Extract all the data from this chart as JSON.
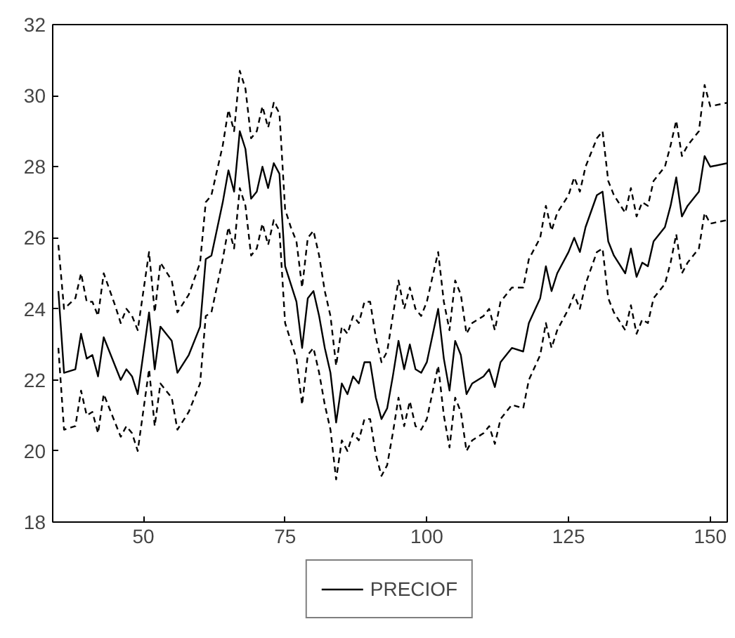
{
  "chart_data": {
    "type": "line",
    "x": [
      35,
      36,
      38,
      39,
      40,
      41,
      42,
      43,
      45,
      46,
      47,
      48,
      49,
      51,
      52,
      53,
      55,
      56,
      58,
      60,
      61,
      62,
      64,
      65,
      66,
      67,
      68,
      69,
      70,
      71,
      72,
      73,
      74,
      75,
      76,
      77,
      78,
      79,
      80,
      81,
      82,
      83,
      84,
      85,
      86,
      87,
      88,
      89,
      90,
      91,
      92,
      93,
      94,
      95,
      96,
      97,
      98,
      99,
      100,
      102,
      103,
      104,
      105,
      106,
      107,
      108,
      110,
      111,
      112,
      113,
      115,
      117,
      118,
      120,
      121,
      122,
      123,
      125,
      126,
      127,
      128,
      130,
      131,
      132,
      133,
      135,
      136,
      137,
      138,
      139,
      140,
      142,
      143,
      144,
      145,
      146,
      148,
      149,
      150,
      153
    ],
    "series": [
      {
        "name": "PRECIOF",
        "color": "#000000",
        "line_style": "solid",
        "values": [
          24.5,
          22.2,
          22.3,
          23.3,
          22.6,
          22.7,
          22.1,
          23.2,
          22.4,
          22.0,
          22.3,
          22.1,
          21.6,
          23.9,
          22.3,
          23.5,
          23.1,
          22.2,
          22.7,
          23.5,
          25.4,
          25.5,
          27.0,
          27.9,
          27.3,
          29.0,
          28.5,
          27.1,
          27.3,
          28.0,
          27.4,
          28.1,
          27.8,
          25.2,
          24.7,
          24.2,
          22.9,
          24.3,
          24.5,
          23.8,
          22.9,
          22.2,
          20.8,
          21.9,
          21.6,
          22.1,
          21.9,
          22.5,
          22.5,
          21.5,
          20.9,
          21.2,
          22.1,
          23.1,
          22.3,
          23.0,
          22.3,
          22.2,
          22.5,
          24.0,
          22.6,
          21.7,
          23.1,
          22.7,
          21.6,
          21.9,
          22.1,
          22.3,
          21.8,
          22.5,
          22.9,
          22.8,
          23.6,
          24.3,
          25.2,
          24.5,
          25.0,
          25.6,
          26.0,
          25.6,
          26.3,
          27.2,
          27.3,
          25.9,
          25.5,
          25.0,
          25.7,
          24.9,
          25.3,
          25.2,
          25.9,
          26.3,
          26.9,
          27.7,
          26.6,
          26.9,
          27.3,
          28.3,
          28.0,
          28.1
        ]
      },
      {
        "color": "#000000",
        "line_style": "dashed",
        "values": [
          25.8,
          24.0,
          24.3,
          25.0,
          24.2,
          24.2,
          23.8,
          25.0,
          24.1,
          23.6,
          24.0,
          23.8,
          23.4,
          25.6,
          23.9,
          25.3,
          24.8,
          23.9,
          24.4,
          25.3,
          27.0,
          27.2,
          28.6,
          29.6,
          29.0,
          30.7,
          30.2,
          28.8,
          29.0,
          29.7,
          29.1,
          29.8,
          29.5,
          26.8,
          26.3,
          25.9,
          24.6,
          26.0,
          26.2,
          25.5,
          24.5,
          23.8,
          22.4,
          23.5,
          23.3,
          23.8,
          23.6,
          24.2,
          24.2,
          23.2,
          22.5,
          22.8,
          23.8,
          24.8,
          24.0,
          24.6,
          24.0,
          23.8,
          24.2,
          25.6,
          24.2,
          23.4,
          24.8,
          24.4,
          23.3,
          23.6,
          23.8,
          24.0,
          23.4,
          24.2,
          24.6,
          24.6,
          25.4,
          26.0,
          26.9,
          26.2,
          26.7,
          27.2,
          27.7,
          27.3,
          28.0,
          28.8,
          29.0,
          27.6,
          27.2,
          26.7,
          27.4,
          26.6,
          27.0,
          26.9,
          27.6,
          28.0,
          28.6,
          29.3,
          28.3,
          28.6,
          29.0,
          30.3,
          29.7,
          29.8
        ]
      },
      {
        "color": "#000000",
        "line_style": "dashed",
        "values": [
          22.9,
          20.6,
          20.7,
          21.7,
          21.0,
          21.1,
          20.5,
          21.6,
          20.8,
          20.4,
          20.7,
          20.5,
          20.0,
          22.3,
          20.7,
          21.9,
          21.5,
          20.6,
          21.1,
          21.9,
          23.8,
          23.9,
          25.4,
          26.3,
          25.7,
          27.4,
          26.9,
          25.5,
          25.7,
          26.4,
          25.8,
          26.5,
          26.2,
          23.6,
          23.1,
          22.6,
          21.3,
          22.7,
          22.9,
          22.2,
          21.3,
          20.6,
          19.2,
          20.3,
          20.0,
          20.5,
          20.3,
          20.9,
          20.9,
          19.9,
          19.3,
          19.6,
          20.5,
          21.5,
          20.7,
          21.4,
          20.7,
          20.6,
          20.9,
          22.4,
          21.0,
          20.1,
          21.5,
          21.1,
          20.0,
          20.3,
          20.5,
          20.7,
          20.2,
          20.9,
          21.3,
          21.2,
          22.0,
          22.7,
          23.6,
          22.9,
          23.4,
          24.0,
          24.4,
          24.0,
          24.7,
          25.6,
          25.7,
          24.3,
          23.9,
          23.4,
          24.1,
          23.3,
          23.7,
          23.6,
          24.3,
          24.7,
          25.3,
          26.1,
          25.0,
          25.3,
          25.7,
          26.7,
          26.4,
          26.5
        ]
      }
    ],
    "xlim": [
      34,
      153
    ],
    "ylim": [
      18,
      32
    ],
    "xticks": [
      50,
      75,
      100,
      125,
      150
    ],
    "yticks": [
      18,
      20,
      22,
      24,
      26,
      28,
      30,
      32
    ],
    "grid": false,
    "legend": "bottom",
    "marker": "none"
  }
}
